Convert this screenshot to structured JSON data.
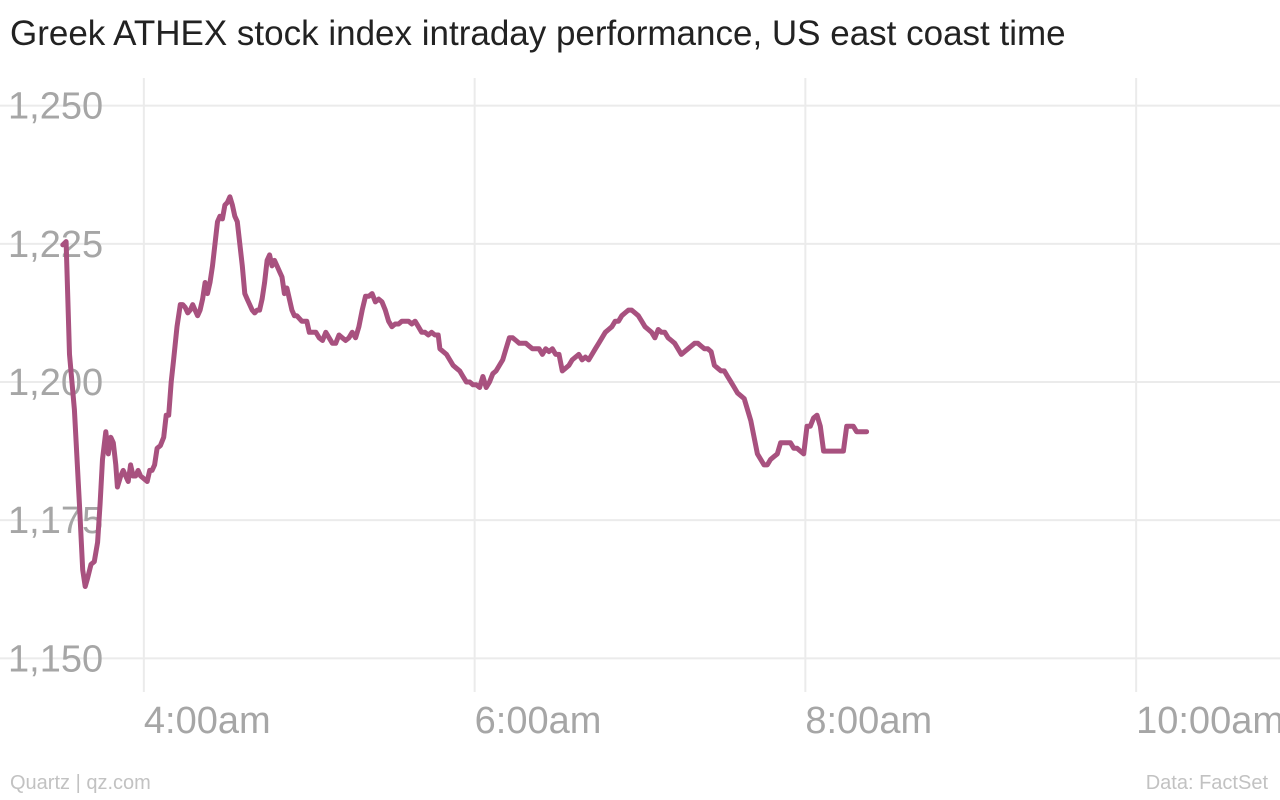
{
  "chart_data": {
    "type": "line",
    "title": "Greek ATHEX stock index intraday performance, US east coast time",
    "xlabel": "",
    "ylabel": "",
    "x_unit": "hours",
    "xlim": [
      3.13,
      10.87
    ],
    "ylim": [
      1145,
      1255
    ],
    "x_ticks": [
      {
        "value": 4,
        "label": "4:00am"
      },
      {
        "value": 6,
        "label": "6:00am"
      },
      {
        "value": 8,
        "label": "8:00am"
      },
      {
        "value": 10,
        "label": "10:00am"
      }
    ],
    "y_ticks": [
      {
        "value": 1250,
        "label": "1,250"
      },
      {
        "value": 1225,
        "label": "1,225"
      },
      {
        "value": 1200,
        "label": "1,200"
      },
      {
        "value": 1175,
        "label": "1,175"
      },
      {
        "value": 1150,
        "label": "1,150"
      }
    ],
    "grid": true,
    "legend": "none",
    "series": [
      {
        "color": "#a8517f",
        "points": [
          [
            3.51,
            1224.8
          ],
          [
            3.53,
            1225.4
          ],
          [
            3.55,
            1205
          ],
          [
            3.58,
            1195
          ],
          [
            3.61,
            1178
          ],
          [
            3.63,
            1166
          ],
          [
            3.645,
            1163
          ],
          [
            3.66,
            1164.5
          ],
          [
            3.68,
            1167
          ],
          [
            3.7,
            1167.5
          ],
          [
            3.72,
            1171
          ],
          [
            3.735,
            1178
          ],
          [
            3.75,
            1186
          ],
          [
            3.77,
            1191
          ],
          [
            3.785,
            1187
          ],
          [
            3.8,
            1190
          ],
          [
            3.815,
            1189
          ],
          [
            3.83,
            1185
          ],
          [
            3.84,
            1181
          ],
          [
            3.86,
            1183
          ],
          [
            3.875,
            1184
          ],
          [
            3.89,
            1183
          ],
          [
            3.905,
            1182
          ],
          [
            3.92,
            1185
          ],
          [
            3.935,
            1183
          ],
          [
            3.95,
            1183
          ],
          [
            3.965,
            1184
          ],
          [
            3.98,
            1183
          ],
          [
            4.0,
            1182.5
          ],
          [
            4.02,
            1182
          ],
          [
            4.035,
            1184
          ],
          [
            4.05,
            1184
          ],
          [
            4.065,
            1185
          ],
          [
            4.08,
            1188
          ],
          [
            4.1,
            1188.5
          ],
          [
            4.12,
            1190
          ],
          [
            4.135,
            1194
          ],
          [
            4.15,
            1194
          ],
          [
            4.165,
            1200
          ],
          [
            4.18,
            1204
          ],
          [
            4.2,
            1210
          ],
          [
            4.22,
            1214
          ],
          [
            4.235,
            1214
          ],
          [
            4.25,
            1213.5
          ],
          [
            4.265,
            1212.5
          ],
          [
            4.28,
            1213
          ],
          [
            4.295,
            1214
          ],
          [
            4.31,
            1213
          ],
          [
            4.325,
            1212
          ],
          [
            4.34,
            1213
          ],
          [
            4.355,
            1215
          ],
          [
            4.37,
            1218
          ],
          [
            4.385,
            1216
          ],
          [
            4.4,
            1218
          ],
          [
            4.415,
            1221
          ],
          [
            4.43,
            1225
          ],
          [
            4.445,
            1229
          ],
          [
            4.46,
            1230
          ],
          [
            4.475,
            1229.5
          ],
          [
            4.49,
            1232
          ],
          [
            4.505,
            1232.5
          ],
          [
            4.52,
            1233.5
          ],
          [
            4.535,
            1232
          ],
          [
            4.55,
            1230
          ],
          [
            4.565,
            1229
          ],
          [
            4.58,
            1225
          ],
          [
            4.595,
            1221
          ],
          [
            4.61,
            1216
          ],
          [
            4.625,
            1215
          ],
          [
            4.64,
            1214
          ],
          [
            4.655,
            1213
          ],
          [
            4.67,
            1212.5
          ],
          [
            4.685,
            1213
          ],
          [
            4.7,
            1213
          ],
          [
            4.715,
            1215
          ],
          [
            4.73,
            1218
          ],
          [
            4.745,
            1222
          ],
          [
            4.76,
            1223
          ],
          [
            4.775,
            1221
          ],
          [
            4.79,
            1222
          ],
          [
            4.805,
            1221
          ],
          [
            4.82,
            1220
          ],
          [
            4.835,
            1219
          ],
          [
            4.85,
            1216
          ],
          [
            4.865,
            1217
          ],
          [
            4.88,
            1215
          ],
          [
            4.895,
            1213
          ],
          [
            4.91,
            1212
          ],
          [
            4.925,
            1212
          ],
          [
            4.94,
            1211.5
          ],
          [
            4.955,
            1211
          ],
          [
            4.97,
            1211
          ],
          [
            4.985,
            1211
          ],
          [
            5.0,
            1209
          ],
          [
            5.02,
            1209
          ],
          [
            5.04,
            1209
          ],
          [
            5.06,
            1208
          ],
          [
            5.08,
            1207.5
          ],
          [
            5.1,
            1209
          ],
          [
            5.12,
            1208
          ],
          [
            5.14,
            1207
          ],
          [
            5.16,
            1207
          ],
          [
            5.18,
            1208.5
          ],
          [
            5.2,
            1208
          ],
          [
            5.22,
            1207.5
          ],
          [
            5.24,
            1208
          ],
          [
            5.26,
            1209
          ],
          [
            5.28,
            1208
          ],
          [
            5.3,
            1210
          ],
          [
            5.32,
            1213
          ],
          [
            5.34,
            1215.5
          ],
          [
            5.36,
            1215.5
          ],
          [
            5.38,
            1216
          ],
          [
            5.4,
            1214.5
          ],
          [
            5.42,
            1215
          ],
          [
            5.44,
            1214.5
          ],
          [
            5.46,
            1213
          ],
          [
            5.48,
            1211
          ],
          [
            5.5,
            1210
          ],
          [
            5.52,
            1210.5
          ],
          [
            5.54,
            1210.5
          ],
          [
            5.56,
            1211
          ],
          [
            5.58,
            1211
          ],
          [
            5.6,
            1211
          ],
          [
            5.62,
            1210.5
          ],
          [
            5.64,
            1211
          ],
          [
            5.66,
            1210
          ],
          [
            5.68,
            1209
          ],
          [
            5.7,
            1209
          ],
          [
            5.72,
            1208.5
          ],
          [
            5.74,
            1209
          ],
          [
            5.76,
            1208.5
          ],
          [
            5.78,
            1208.5
          ],
          [
            5.79,
            1206
          ],
          [
            5.81,
            1205.5
          ],
          [
            5.83,
            1205
          ],
          [
            5.85,
            1204
          ],
          [
            5.87,
            1203
          ],
          [
            5.89,
            1202.5
          ],
          [
            5.91,
            1202
          ],
          [
            5.93,
            1201
          ],
          [
            5.95,
            1200
          ],
          [
            5.97,
            1200
          ],
          [
            5.99,
            1199.5
          ],
          [
            6.01,
            1199.5
          ],
          [
            6.03,
            1199
          ],
          [
            6.05,
            1201
          ],
          [
            6.07,
            1199
          ],
          [
            6.09,
            1200
          ],
          [
            6.11,
            1201.5
          ],
          [
            6.13,
            1202
          ],
          [
            6.15,
            1203
          ],
          [
            6.17,
            1204
          ],
          [
            6.19,
            1206
          ],
          [
            6.21,
            1208
          ],
          [
            6.23,
            1208
          ],
          [
            6.25,
            1207.5
          ],
          [
            6.27,
            1207
          ],
          [
            6.29,
            1207
          ],
          [
            6.31,
            1207
          ],
          [
            6.33,
            1206.5
          ],
          [
            6.35,
            1206
          ],
          [
            6.37,
            1206
          ],
          [
            6.39,
            1206
          ],
          [
            6.41,
            1205
          ],
          [
            6.43,
            1206
          ],
          [
            6.45,
            1205.5
          ],
          [
            6.47,
            1206
          ],
          [
            6.49,
            1205
          ],
          [
            6.51,
            1205
          ],
          [
            6.53,
            1202
          ],
          [
            6.55,
            1202.5
          ],
          [
            6.57,
            1203
          ],
          [
            6.59,
            1204
          ],
          [
            6.61,
            1204.5
          ],
          [
            6.63,
            1205
          ],
          [
            6.65,
            1204
          ],
          [
            6.67,
            1204.5
          ],
          [
            6.69,
            1204
          ],
          [
            6.71,
            1205
          ],
          [
            6.73,
            1206
          ],
          [
            6.75,
            1207
          ],
          [
            6.77,
            1208
          ],
          [
            6.79,
            1209
          ],
          [
            6.81,
            1209.5
          ],
          [
            6.83,
            1210
          ],
          [
            6.85,
            1211
          ],
          [
            6.87,
            1211
          ],
          [
            6.89,
            1212
          ],
          [
            6.91,
            1212.5
          ],
          [
            6.93,
            1213
          ],
          [
            6.95,
            1213
          ],
          [
            6.97,
            1212.5
          ],
          [
            6.99,
            1212
          ],
          [
            7.01,
            1211
          ],
          [
            7.03,
            1210
          ],
          [
            7.05,
            1209.5
          ],
          [
            7.07,
            1209
          ],
          [
            7.09,
            1208
          ],
          [
            7.11,
            1209.5
          ],
          [
            7.13,
            1209
          ],
          [
            7.15,
            1209
          ],
          [
            7.17,
            1208
          ],
          [
            7.19,
            1207.5
          ],
          [
            7.21,
            1207
          ],
          [
            7.23,
            1206
          ],
          [
            7.25,
            1205
          ],
          [
            7.27,
            1205.5
          ],
          [
            7.29,
            1206
          ],
          [
            7.31,
            1206.5
          ],
          [
            7.33,
            1207
          ],
          [
            7.35,
            1207
          ],
          [
            7.37,
            1206.5
          ],
          [
            7.39,
            1206
          ],
          [
            7.41,
            1206
          ],
          [
            7.43,
            1205.5
          ],
          [
            7.45,
            1203
          ],
          [
            7.47,
            1202.5
          ],
          [
            7.49,
            1202
          ],
          [
            7.51,
            1202
          ],
          [
            7.53,
            1201
          ],
          [
            7.55,
            1200
          ],
          [
            7.57,
            1199
          ],
          [
            7.59,
            1198
          ],
          [
            7.61,
            1197.5
          ],
          [
            7.63,
            1197
          ],
          [
            7.65,
            1195
          ],
          [
            7.67,
            1193
          ],
          [
            7.69,
            1190
          ],
          [
            7.71,
            1187
          ],
          [
            7.73,
            1186
          ],
          [
            7.75,
            1185
          ],
          [
            7.77,
            1185
          ],
          [
            7.79,
            1186
          ],
          [
            7.81,
            1186.5
          ],
          [
            7.83,
            1187
          ],
          [
            7.85,
            1189
          ],
          [
            7.87,
            1189
          ],
          [
            7.89,
            1189
          ],
          [
            7.91,
            1189
          ],
          [
            7.93,
            1188
          ],
          [
            7.95,
            1188
          ],
          [
            7.97,
            1187.5
          ],
          [
            7.99,
            1187
          ],
          [
            8.01,
            1192
          ],
          [
            8.03,
            1192
          ],
          [
            8.05,
            1193.5
          ],
          [
            8.07,
            1194
          ],
          [
            8.09,
            1192
          ],
          [
            8.11,
            1187.5
          ],
          [
            8.13,
            1187.5
          ],
          [
            8.15,
            1187.5
          ],
          [
            8.17,
            1187.5
          ],
          [
            8.19,
            1187.5
          ],
          [
            8.21,
            1187.5
          ],
          [
            8.23,
            1187.5
          ],
          [
            8.25,
            1192
          ],
          [
            8.27,
            1192
          ],
          [
            8.29,
            1192
          ],
          [
            8.31,
            1191
          ],
          [
            8.33,
            1191
          ],
          [
            8.35,
            1191
          ],
          [
            8.37,
            1191
          ]
        ]
      }
    ]
  },
  "footer": {
    "source_left": "Quartz | qz.com",
    "source_right": "Data: FactSet"
  }
}
